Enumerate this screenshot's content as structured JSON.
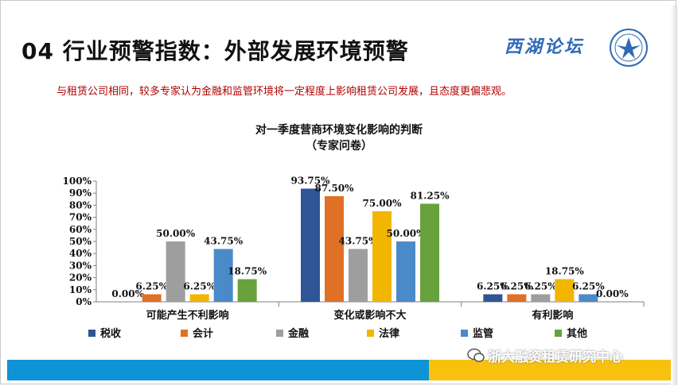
{
  "slide": {
    "title": "04 行业预警指数：外部发展环境预警",
    "brand": "西湖论坛",
    "subtitle": "与租赁公司相同，较多专家认为金融和监管环境将一定程度上影响租赁公司发展，且态度更偏悲观。",
    "watermark": "浙大融资租赁研究中心"
  },
  "colors": {
    "tax": "#2f5597",
    "accounting": "#e07026",
    "finance": "#9e9e9e",
    "law": "#f2b600",
    "regulation": "#4a8ac9",
    "other": "#67a23c",
    "band_blue": "#0d93d6",
    "band_yellow": "#f7c10d",
    "subtitle": "#b00000"
  },
  "chart_data": {
    "type": "bar",
    "title": "对一季度营商环境变化影响的判断",
    "subtitle": "（专家问卷）",
    "categories": [
      "可能产生不利影响",
      "变化或影响不大",
      "有利影响"
    ],
    "series": [
      {
        "name": "税收",
        "values": [
          0.0,
          93.75,
          6.25
        ],
        "labels": [
          "0.00%",
          "93.75%",
          "6.25%"
        ]
      },
      {
        "name": "会计",
        "values": [
          6.25,
          87.5,
          6.25
        ],
        "labels": [
          "6.25%",
          "87.50%",
          "6.25%"
        ]
      },
      {
        "name": "金融",
        "values": [
          50.0,
          43.75,
          6.25
        ],
        "labels": [
          "50.00%",
          "43.75%",
          "6.25%"
        ]
      },
      {
        "name": "法律",
        "values": [
          6.25,
          75.0,
          18.75
        ],
        "labels": [
          "6.25%",
          "75.00%",
          "18.75%"
        ]
      },
      {
        "name": "监管",
        "values": [
          43.75,
          50.0,
          6.25
        ],
        "labels": [
          "43.75%",
          "50.00%",
          "6.25%"
        ]
      },
      {
        "name": "其他",
        "values": [
          18.75,
          81.25,
          0.0
        ],
        "labels": [
          "18.75%",
          "81.25%",
          "0.00%"
        ]
      }
    ],
    "yticks": [
      "0%",
      "10%",
      "20%",
      "30%",
      "40%",
      "50%",
      "60%",
      "70%",
      "80%",
      "90%",
      "100%"
    ],
    "ylim": [
      0,
      100
    ],
    "grid": false,
    "legend": "bottom"
  }
}
